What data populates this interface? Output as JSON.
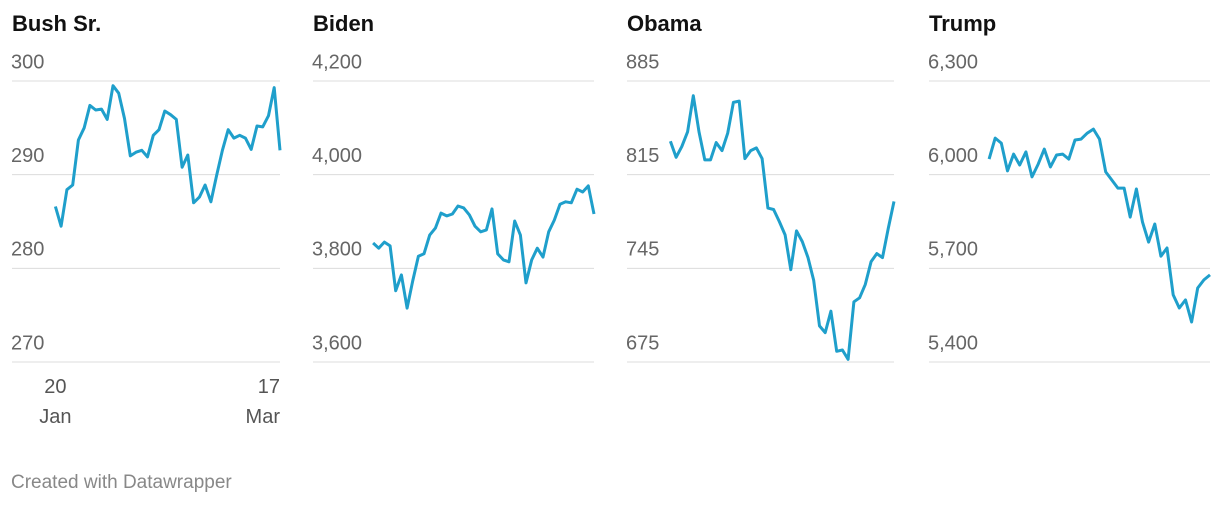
{
  "chart_data": [
    {
      "type": "line",
      "title": "Bush Sr.",
      "color": "#1f9fcb",
      "grid": true,
      "categories": [
        "20 Jan",
        null,
        null,
        null,
        null,
        null,
        null,
        null,
        null,
        null,
        null,
        null,
        null,
        null,
        null,
        null,
        null,
        null,
        null,
        null,
        null,
        null,
        null,
        null,
        null,
        null,
        null,
        null,
        null,
        null,
        null,
        null,
        null,
        null,
        null,
        null,
        null,
        null,
        null,
        "17 Mar"
      ],
      "values": [
        286.6,
        284.5,
        288.4,
        288.9,
        293.7,
        295,
        297.4,
        296.9,
        297,
        295.9,
        299.5,
        298.7,
        296,
        292,
        292.4,
        292.6,
        291.9,
        294.2,
        294.8,
        296.8,
        296.4,
        295.9,
        290.8,
        292.1,
        287,
        287.6,
        288.9,
        287.1,
        289.9,
        292.6,
        294.8,
        293.9,
        294.2,
        293.9,
        292.7,
        295.2,
        295.1,
        296.3,
        299.3,
        292.6
      ],
      "ylim": [
        270,
        300
      ],
      "yticks": [
        270,
        280,
        290,
        300
      ]
    },
    {
      "type": "line",
      "title": "Biden",
      "color": "#1f9fcb",
      "grid": true,
      "values": [
        3854,
        3843,
        3856,
        3848,
        3752,
        3786,
        3715,
        3773,
        3826,
        3831,
        3871,
        3886,
        3918,
        3912,
        3916,
        3933,
        3929,
        3914,
        3890,
        3878,
        3882,
        3927,
        3831,
        3818,
        3814,
        3901,
        3871,
        3769,
        3818,
        3843,
        3824,
        3878,
        3903,
        3937,
        3942,
        3940,
        3969,
        3963,
        3976,
        3916
      ],
      "ylim": [
        3600,
        4200
      ],
      "yticks": [
        {
          "value": 3600,
          "label": "3,600"
        },
        {
          "value": 3800,
          "label": "3,800"
        },
        {
          "value": 4000,
          "label": "4,000"
        },
        {
          "value": 4200,
          "label": "4,200"
        }
      ]
    },
    {
      "type": "line",
      "title": "Obama",
      "color": "#1f9fcb",
      "grid": true,
      "values": [
        840,
        828,
        836,
        847,
        874,
        847,
        826,
        826,
        839,
        833,
        846,
        869,
        870,
        827,
        833,
        835,
        827,
        790,
        789,
        780,
        770,
        744,
        773,
        765,
        753,
        736,
        702,
        697,
        713,
        683,
        684,
        677,
        720,
        723,
        733,
        750,
        756,
        753,
        775,
        795
      ],
      "ylim": [
        675,
        885
      ],
      "yticks": [
        675,
        745,
        815,
        885
      ]
    },
    {
      "type": "line",
      "title": "Trump",
      "color": "#1f9fcb",
      "grid": true,
      "values": [
        6050,
        6117,
        6101,
        6012,
        6066,
        6031,
        6073,
        5993,
        6034,
        6082,
        6025,
        6063,
        6066,
        6050,
        6111,
        6114,
        6133,
        6146,
        6114,
        6009,
        5983,
        5957,
        5957,
        5864,
        5954,
        5848,
        5784,
        5842,
        5739,
        5765,
        5615,
        5573,
        5599,
        5528,
        5637,
        5663,
        5679
      ],
      "ylim": [
        5400,
        6300
      ],
      "yticks": [
        {
          "value": 5400,
          "label": "5,400"
        },
        {
          "value": 5700,
          "label": "5,700"
        },
        {
          "value": 6000,
          "label": "6,000"
        },
        {
          "value": 6300,
          "label": "6,300"
        }
      ]
    }
  ],
  "footer": "Created with Datawrapper"
}
